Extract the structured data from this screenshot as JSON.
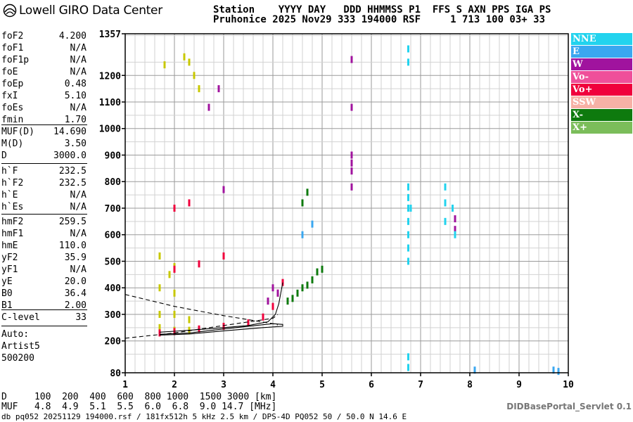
{
  "header": {
    "logo_text": "Lowell GIRO Data Center",
    "station_line1": "Station    YYYY DAY   DDD HHMMSS P1  FFS S AXN PPS IGA PS",
    "station_line2": "Pruhonice 2025 Nov29 333 194000 RSF     1 713 100 03+ 33"
  },
  "params": {
    "group1": [
      {
        "name": "foF2",
        "value": "4.200"
      },
      {
        "name": "foF1",
        "value": "N/A"
      },
      {
        "name": "foF1p",
        "value": "N/A"
      },
      {
        "name": "foE",
        "value": "N/A"
      },
      {
        "name": "foEp",
        "value": "0.48"
      },
      {
        "name": "fxI",
        "value": "5.10"
      },
      {
        "name": "foEs",
        "value": "N/A"
      },
      {
        "name": "fmin",
        "value": "1.70"
      }
    ],
    "group2": [
      {
        "name": "MUF(D)",
        "value": "14.690"
      },
      {
        "name": "M(D)",
        "value": "3.50"
      },
      {
        "name": "D",
        "value": "3000.0"
      }
    ],
    "group3": [
      {
        "name": "h`F",
        "value": "232.5"
      },
      {
        "name": "h`F2",
        "value": "232.5"
      },
      {
        "name": "h`E",
        "value": "N/A"
      },
      {
        "name": "h`Es",
        "value": "N/A"
      }
    ],
    "group4": [
      {
        "name": "hmF2",
        "value": "259.5"
      },
      {
        "name": "hmF1",
        "value": "N/A"
      },
      {
        "name": "hmE",
        "value": "110.0"
      },
      {
        "name": "yF2",
        "value": "35.9"
      },
      {
        "name": "yF1",
        "value": "N/A"
      },
      {
        "name": "yE",
        "value": "20.0"
      },
      {
        "name": "B0",
        "value": "36.4"
      },
      {
        "name": "B1",
        "value": "2.00"
      }
    ],
    "group5": [
      {
        "name": "C-level",
        "value": "33"
      }
    ]
  },
  "auto": {
    "line1": "Auto:",
    "line2": "Artist5",
    "line3": "500200"
  },
  "legend": [
    {
      "label": "NNE",
      "color": "#22d3ee"
    },
    {
      "label": "E",
      "color": "#3aa7f0"
    },
    {
      "label": "W",
      "color": "#a0139e"
    },
    {
      "label": "Vo-",
      "color": "#ef4f9a"
    },
    {
      "label": "Vo+",
      "color": "#f0003c"
    },
    {
      "label": "SSW",
      "color": "#f7b1a6"
    },
    {
      "label": "X-",
      "color": "#0e7a0e"
    },
    {
      "label": "X+",
      "color": "#7bbd5a"
    }
  ],
  "dmuf": {
    "d_line": "D     100  200  400  600  800 1000  1500 3000 [km]",
    "muf_line": "MUF   4.8  4.9  5.1  5.5  6.0  6.8  9.0 14.7 [MHz]"
  },
  "footer": {
    "line": "db pq052 20251129 194000.rsf / 181fx512h 5 kHz 2.5 km / DPS-4D PQ052 50 / 50.0 N 14.6 E",
    "portal": "DIDBasePortal_Servlet 0.1"
  },
  "chart_data": {
    "type": "scatter",
    "x_ticks": [
      "1",
      "2",
      "3",
      "4",
      "5",
      "6",
      "7",
      "8",
      "9",
      "10"
    ],
    "y_ticks": [
      "80",
      "200",
      "300",
      "400",
      "500",
      "600",
      "700",
      "800",
      "900",
      "1000",
      "1100",
      "1200",
      "1357"
    ],
    "xlim": [
      1,
      10
    ],
    "ylim": [
      80,
      1357
    ],
    "grid": true,
    "series": [
      {
        "name": "X+",
        "color": "#c8c800",
        "points": [
          [
            1.7,
            520
          ],
          [
            1.7,
            400
          ],
          [
            1.7,
            300
          ],
          [
            1.7,
            250
          ],
          [
            1.9,
            450
          ],
          [
            2.0,
            480
          ],
          [
            2.0,
            380
          ],
          [
            2.0,
            300
          ],
          [
            2.0,
            240
          ],
          [
            2.3,
            280
          ],
          [
            2.3,
            240
          ],
          [
            2.3,
            1250
          ],
          [
            2.4,
            1200
          ],
          [
            2.2,
            1270
          ],
          [
            2.5,
            1150
          ],
          [
            1.8,
            1240
          ]
        ]
      },
      {
        "name": "X-",
        "color": "#0e7a0e",
        "points": [
          [
            4.3,
            350
          ],
          [
            4.5,
            380
          ],
          [
            4.7,
            410
          ],
          [
            4.8,
            430
          ],
          [
            4.9,
            460
          ],
          [
            5.0,
            470
          ],
          [
            4.6,
            400
          ],
          [
            4.4,
            360
          ],
          [
            4.6,
            720
          ],
          [
            4.7,
            760
          ]
        ]
      },
      {
        "name": "Vo+",
        "color": "#f0003c",
        "points": [
          [
            1.7,
            230
          ],
          [
            2.0,
            235
          ],
          [
            2.5,
            245
          ],
          [
            3.0,
            255
          ],
          [
            3.5,
            268
          ],
          [
            3.8,
            290
          ],
          [
            4.0,
            330
          ],
          [
            4.1,
            380
          ],
          [
            4.2,
            420
          ],
          [
            2.0,
            470
          ],
          [
            2.5,
            490
          ],
          [
            3.0,
            520
          ],
          [
            2.0,
            700
          ],
          [
            2.3,
            720
          ]
        ]
      },
      {
        "name": "W",
        "color": "#a0139e",
        "points": [
          [
            5.6,
            900
          ],
          [
            5.6,
            870
          ],
          [
            5.6,
            840
          ],
          [
            5.6,
            780
          ],
          [
            5.6,
            1080
          ],
          [
            5.6,
            1260
          ],
          [
            3.9,
            350
          ],
          [
            4.1,
            380
          ],
          [
            4.0,
            400
          ],
          [
            2.7,
            1080
          ],
          [
            2.9,
            1150
          ],
          [
            3.0,
            770
          ],
          [
            7.7,
            660
          ],
          [
            7.7,
            620
          ]
        ]
      },
      {
        "name": "NNE",
        "color": "#22d3ee",
        "points": [
          [
            6.75,
            1300
          ],
          [
            6.75,
            1250
          ],
          [
            6.75,
            780
          ],
          [
            6.75,
            740
          ],
          [
            6.75,
            700
          ],
          [
            6.75,
            650
          ],
          [
            6.75,
            600
          ],
          [
            6.75,
            550
          ],
          [
            6.75,
            500
          ],
          [
            7.5,
            780
          ],
          [
            7.5,
            720
          ],
          [
            7.5,
            650
          ],
          [
            7.65,
            700
          ],
          [
            7.7,
            600
          ],
          [
            6.8,
            700
          ],
          [
            6.75,
            140
          ],
          [
            6.75,
            100
          ]
        ]
      },
      {
        "name": "E",
        "color": "#3aa7f0",
        "points": [
          [
            8.1,
            90
          ],
          [
            9.7,
            90
          ],
          [
            9.8,
            85
          ],
          [
            4.6,
            600
          ],
          [
            4.8,
            640
          ]
        ]
      }
    ],
    "annotations": [
      {
        "type": "line",
        "style": "dashed",
        "points": [
          [
            1.0,
            375
          ],
          [
            2.0,
            330
          ],
          [
            3.0,
            295
          ],
          [
            4.0,
            265
          ],
          [
            4.1,
            260
          ]
        ]
      },
      {
        "type": "line",
        "style": "dashed",
        "points": [
          [
            1.0,
            210
          ],
          [
            2.0,
            230
          ],
          [
            3.0,
            258
          ],
          [
            4.0,
            285
          ],
          [
            4.1,
            300
          ]
        ]
      },
      {
        "type": "line",
        "style": "solid",
        "points": [
          [
            1.7,
            225
          ],
          [
            2.3,
            230
          ],
          [
            3.0,
            245
          ],
          [
            3.5,
            255
          ],
          [
            4.0,
            265
          ],
          [
            4.2,
            262
          ],
          [
            4.2,
            255
          ],
          [
            3.8,
            250
          ],
          [
            3.0,
            238
          ],
          [
            2.3,
            226
          ],
          [
            1.7,
            222
          ]
        ]
      },
      {
        "type": "line",
        "style": "solid",
        "points": [
          [
            1.7,
            233
          ],
          [
            2.3,
            240
          ],
          [
            3.0,
            250
          ],
          [
            3.5,
            258
          ],
          [
            3.9,
            272
          ],
          [
            4.05,
            300
          ],
          [
            4.12,
            340
          ],
          [
            4.16,
            380
          ],
          [
            4.2,
            420
          ]
        ]
      }
    ]
  }
}
